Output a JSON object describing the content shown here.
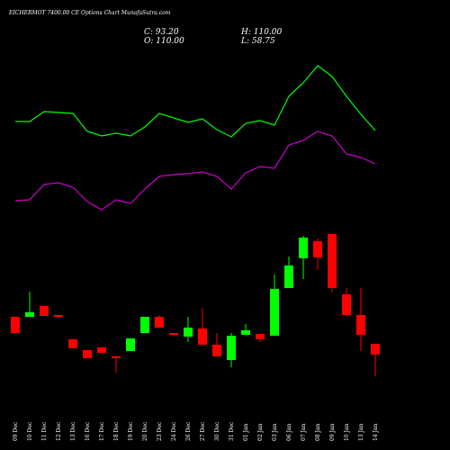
{
  "chart_data": {
    "type": "candlestick",
    "title": "EICHERMOT 7400.00 CE Options Chart MunafaSutra.com",
    "annotations": [
      "C: 93.20",
      "H: 110.00",
      "O: 110.00",
      "L: 58.75"
    ],
    "categories": [
      "09 Dec",
      "10 Dec",
      "11 Dec",
      "12 Dec",
      "13 Dec",
      "16 Dec",
      "17 Dec",
      "18 Dec",
      "19 Dec",
      "20 Dec",
      "23 Dec",
      "24 Dec",
      "26 Dec",
      "27 Dec",
      "30 Dec",
      "31 Dec",
      "01 Jan",
      "02 Jan",
      "03 Jan",
      "06 Jan",
      "07 Jan",
      "08 Jan",
      "09 Jan",
      "10 Jan",
      "13 Jan",
      "14 Jan"
    ],
    "open": [
      98,
      98,
      110,
      100,
      73,
      61,
      64,
      54,
      60,
      80,
      98,
      80,
      76,
      85,
      67,
      50,
      78,
      79,
      77,
      130,
      163,
      182,
      190,
      123,
      100,
      68
    ],
    "high": [
      98,
      126,
      110,
      100,
      73,
      61,
      64,
      54,
      74,
      98,
      100,
      80,
      98,
      108,
      80,
      80,
      90,
      79,
      145,
      165,
      188,
      185,
      190,
      130,
      130,
      68
    ],
    "low": [
      80,
      98,
      99,
      98,
      63,
      52,
      58,
      36,
      60,
      80,
      86,
      78,
      70,
      67,
      54,
      42,
      78,
      70,
      77,
      130,
      140,
      150,
      125,
      100,
      60,
      32
    ],
    "close": [
      80,
      103,
      99,
      98,
      63,
      52,
      58,
      52,
      74,
      98,
      86,
      78,
      86,
      67,
      54,
      77,
      83,
      73,
      129,
      155,
      186,
      164,
      130,
      100,
      78,
      56
    ],
    "up_color": "#00ff00",
    "down_color": "#ff0000",
    "lines": [
      {
        "color": "#00ff00",
        "values": [
          315,
          315,
          326,
          325,
          324,
          304,
          299,
          302,
          299,
          309,
          324,
          319,
          314,
          318,
          306,
          298,
          313,
          316,
          311,
          343,
          358,
          377,
          365,
          343,
          323,
          305
        ]
      },
      {
        "color": "#cc00cc",
        "values": [
          227,
          228,
          245,
          247,
          242,
          226,
          217,
          228,
          224,
          240,
          254,
          256,
          257,
          259,
          254,
          240,
          258,
          265,
          263,
          289,
          294,
          304,
          299,
          279,
          275,
          268
        ]
      }
    ],
    "ylim": [
      0,
      450
    ]
  }
}
